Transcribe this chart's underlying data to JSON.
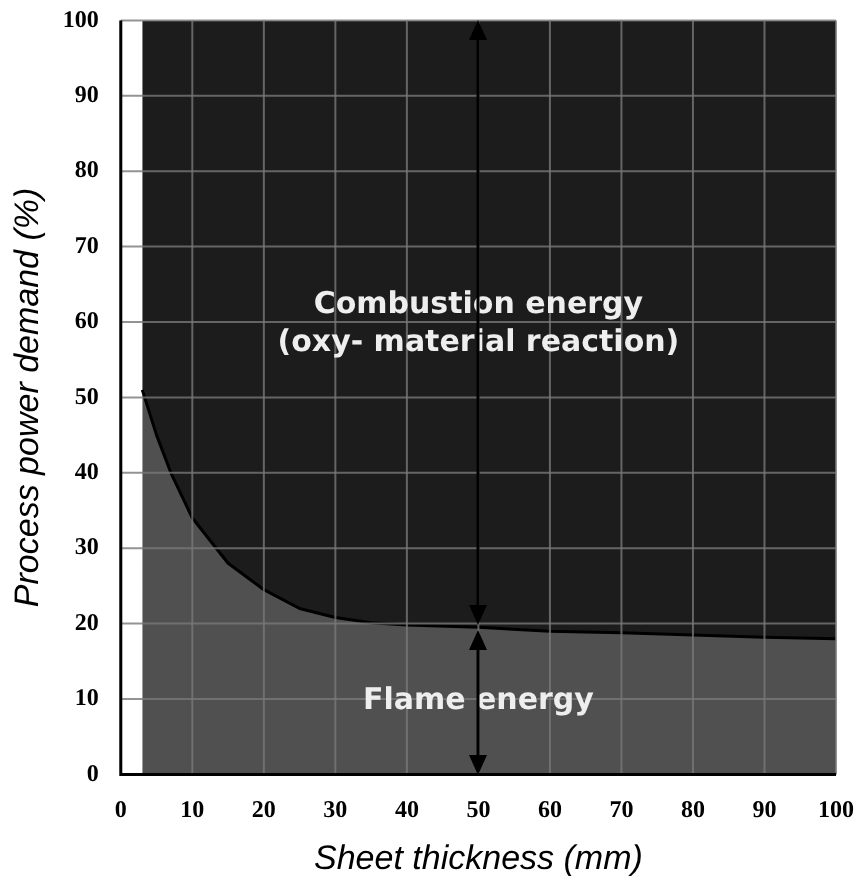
{
  "chart_data": {
    "type": "area",
    "stacked": true,
    "xlabel": "Sheet thickness (mm)",
    "ylabel": "Process power demand (%)",
    "x": [
      3,
      5,
      7,
      10,
      15,
      20,
      25,
      30,
      35,
      40,
      50,
      60,
      70,
      80,
      90,
      100
    ],
    "series": [
      {
        "color": "#505050",
        "values": [
          51,
          45,
          40,
          34,
          28,
          24.5,
          22,
          20.8,
          20.1,
          19.8,
          19.5,
          19,
          18.8,
          18.5,
          18.2,
          18
        ]
      },
      {
        "color": "#1c1c1c",
        "values": [
          49,
          55,
          60,
          66,
          72,
          75.5,
          78,
          79.2,
          79.9,
          80.2,
          80.5,
          81,
          81.2,
          81.5,
          81.8,
          82
        ]
      }
    ],
    "xlim": [
      0,
      100
    ],
    "xticks": [
      0,
      10,
      20,
      30,
      40,
      50,
      60,
      70,
      80,
      90,
      100
    ],
    "ylim": [
      0,
      100
    ],
    "yticks": [
      0,
      10,
      20,
      30,
      40,
      50,
      60,
      70,
      80,
      90,
      100
    ],
    "grid": true,
    "legend": false,
    "annotations": [
      "Combustion energy\n(oxy- material reaction)",
      "Flame energy"
    ]
  }
}
